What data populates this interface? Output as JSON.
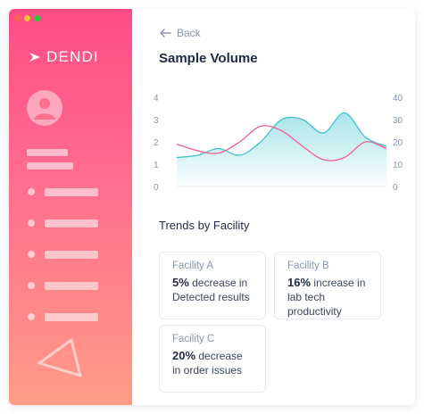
{
  "app": {
    "logo_text": "DENDI"
  },
  "nav": {
    "back_label": "Back"
  },
  "page": {
    "title": "Sample Volume"
  },
  "colors": {
    "accent_pink": "#f45b93",
    "accent_teal": "#3cc3cf",
    "sidebar_top": "#ff4c86",
    "sidebar_bottom": "#ff9c86"
  },
  "icons": {
    "back": "arrow-left-icon",
    "logo": "dendi-logo-icon",
    "avatar": "user-icon",
    "decor": "triangle-icon"
  },
  "chart_data": {
    "type": "line",
    "title": "",
    "y_left": {
      "ticks": [
        "0",
        "1",
        "2",
        "3",
        "4"
      ],
      "range": [
        0,
        4
      ]
    },
    "y_right": {
      "ticks": [
        "0",
        "10",
        "20",
        "30",
        "40"
      ],
      "range": [
        0,
        40
      ]
    },
    "x": [
      0,
      1,
      2,
      3,
      4,
      5,
      6,
      7,
      8,
      9,
      10
    ],
    "series": [
      {
        "values": [
          1.9,
          1.6,
          1.5,
          2.0,
          2.7,
          2.5,
          1.8,
          1.2,
          1.3,
          2.0,
          1.7
        ]
      },
      {
        "values": [
          13,
          14,
          17,
          14,
          20,
          30,
          30,
          24,
          33,
          22,
          18
        ],
        "area": true
      }
    ],
    "grid": false
  },
  "trends": {
    "title": "Trends by Facility",
    "cards": [
      {
        "name": "Facility A",
        "value": "5%",
        "rest": " decrease in Detected results"
      },
      {
        "name": "Facility B",
        "value": "16%",
        "rest": " increase in lab tech productivity"
      },
      {
        "name": "Facility C",
        "value": "20%",
        "rest": " decrease in order issues"
      }
    ]
  }
}
